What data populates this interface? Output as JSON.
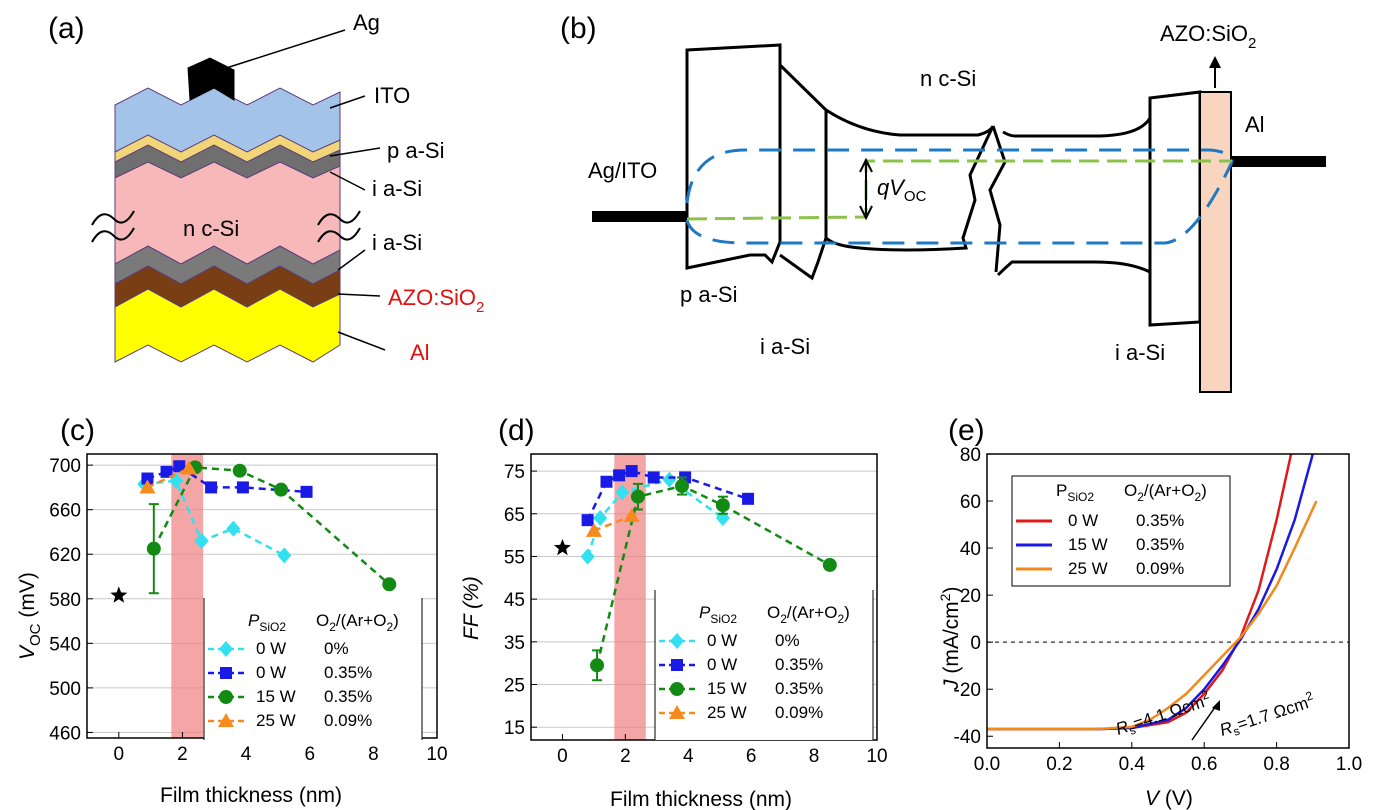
{
  "panels": {
    "a": {
      "label": "(a)",
      "layers": [
        {
          "name": "Ag",
          "color": "#000000"
        },
        {
          "name": "ITO",
          "color": "#a3c4e8"
        },
        {
          "name": "p a-Si",
          "color": "#f2d479"
        },
        {
          "name": "i a-Si",
          "color": "#6f6f6f"
        },
        {
          "name": "n c-Si",
          "color": "#f6b8b8"
        },
        {
          "name": "i a-Si",
          "color": "#7a7a7a"
        },
        {
          "name": "AZO:SiO",
          "sub": "2",
          "color": "#7a3e14"
        },
        {
          "name": "Al",
          "color": "#ffff00"
        }
      ]
    },
    "b": {
      "label": "(b)",
      "texts": {
        "ag_ito": "Ag/ITO",
        "nc_si": "n c-Si",
        "azo": "AZO:SiO",
        "azo_sub": "2",
        "al": "Al",
        "pasi": "p a-Si",
        "iasi_left": "i a-Si",
        "iasi_right": "i a-Si",
        "qv": "qV",
        "qv_sub": "OC"
      }
    },
    "c": {
      "label": "(c)",
      "ylabel_main": "V",
      "ylabel_sub": "OC",
      "ylabel_unit": " (mV)",
      "xlabel": "Film thickness (nm)",
      "legend_h1_main": "P",
      "legend_h1_sub": "SiO2",
      "legend_h2": "O",
      "legend_h2_sub": "2",
      "legend_h2_rest": "/(Ar+O",
      "legend_h2_sub2": "2",
      "legend_h2_end": ")"
    },
    "d": {
      "label": "(d)",
      "ylabel": "FF (%)",
      "xlabel": "Film thickness (nm)",
      "legend_h1_main": "P",
      "legend_h1_sub": "SiO2",
      "legend_h2": "O",
      "legend_h2_sub": "2",
      "legend_h2_rest": "/(Ar+O",
      "legend_h2_sub2": "2",
      "legend_h2_end": ")"
    },
    "e": {
      "label": "(e)",
      "ylabel_main": "J",
      "ylabel_rest": " (mA/cm",
      "ylabel_sup": "2",
      "ylabel_end": ")",
      "xlabel_main": "V",
      "xlabel_rest": " (V)",
      "legend_h1_main": "P",
      "legend_h1_sub": "SiO2",
      "legend_h2": "O",
      "legend_h2_sub": "2",
      "legend_h2_rest": "/(Ar+O",
      "legend_h2_sub2": "2",
      "legend_h2_end": ")",
      "ann1": "=4.1 Ωcm",
      "ann2": "=1.7 Ωcm",
      "ann_r": "R",
      "ann_s": "s",
      "ann_sup": "2"
    }
  },
  "chart_data": [
    {
      "panel": "c",
      "type": "scatter",
      "xlabel": "Film thickness (nm)",
      "ylabel": "VOC (mV)",
      "xlim": [
        -1,
        10
      ],
      "ylim": [
        455,
        710
      ],
      "xticks": [
        0,
        2,
        4,
        6,
        8,
        10
      ],
      "yticks": [
        460,
        500,
        540,
        580,
        620,
        660,
        700
      ],
      "highlight_band": [
        1.65,
        2.65
      ],
      "reference_star": {
        "x": 0,
        "y": 583
      },
      "series": [
        {
          "psio2": "0 W",
          "o2": "0%",
          "color": "#33e0ef",
          "marker": "diamond",
          "x": [
            0.8,
            1.8,
            2.6,
            3.6,
            5.2
          ],
          "y": [
            683,
            686,
            632,
            643,
            619
          ]
        },
        {
          "psio2": "0 W",
          "o2": "0.35%",
          "color": "#1a1ae6",
          "marker": "square",
          "x": [
            0.9,
            1.5,
            1.9,
            2.9,
            3.9,
            5.9
          ],
          "y": [
            688,
            694,
            699,
            680,
            680,
            676
          ]
        },
        {
          "psio2": "15 W",
          "o2": "0.35%",
          "color": "#138a13",
          "marker": "circle",
          "x": [
            1.1,
            2.4,
            3.8,
            5.1,
            8.5
          ],
          "y": [
            625,
            698,
            695,
            678,
            593
          ],
          "err_low": [
            40,
            0,
            0,
            0,
            0
          ],
          "err_high": [
            40,
            0,
            0,
            0,
            0
          ]
        },
        {
          "psio2": "25 W",
          "o2": "0.09%",
          "color": "#f78a1e",
          "marker": "triangle",
          "x": [
            0.9,
            2.2
          ],
          "y": [
            680,
            697
          ]
        }
      ]
    },
    {
      "panel": "d",
      "type": "scatter",
      "xlabel": "Film thickness (nm)",
      "ylabel": "FF (%)",
      "xlim": [
        -1,
        10
      ],
      "ylim": [
        12,
        79
      ],
      "xticks": [
        0,
        2,
        4,
        6,
        8,
        10
      ],
      "yticks": [
        15,
        25,
        35,
        45,
        55,
        65,
        75
      ],
      "highlight_band": [
        1.65,
        2.65
      ],
      "reference_star": {
        "x": 0,
        "y": 57
      },
      "series": [
        {
          "psio2": "0 W",
          "o2": "0%",
          "color": "#33e0ef",
          "marker": "diamond",
          "x": [
            0.8,
            1.2,
            1.9,
            3.4,
            5.1
          ],
          "y": [
            55,
            64,
            70,
            73,
            64
          ]
        },
        {
          "psio2": "0 W",
          "o2": "0.35%",
          "color": "#1a1ae6",
          "marker": "square",
          "x": [
            0.8,
            1.4,
            1.8,
            2.2,
            2.9,
            3.9,
            5.9
          ],
          "y": [
            63.5,
            72.5,
            74,
            75,
            73.5,
            73.5,
            68.5
          ]
        },
        {
          "psio2": "15 W",
          "o2": "0.35%",
          "color": "#138a13",
          "marker": "circle",
          "x": [
            1.1,
            2.4,
            3.8,
            5.1,
            8.5
          ],
          "y": [
            29.5,
            69,
            71.5,
            67,
            53
          ],
          "err_low": [
            3.5,
            3,
            2,
            2,
            0
          ],
          "err_high": [
            3.5,
            3,
            2,
            2,
            0
          ]
        },
        {
          "psio2": "25 W",
          "o2": "0.09%",
          "color": "#f78a1e",
          "marker": "triangle",
          "x": [
            1.0,
            2.2
          ],
          "y": [
            61,
            64.5
          ]
        }
      ]
    },
    {
      "panel": "e",
      "type": "line",
      "xlabel": "V (V)",
      "ylabel": "J (mA/cm2)",
      "xlim": [
        0,
        1.0
      ],
      "ylim": [
        -45,
        80
      ],
      "xticks": [
        0.0,
        0.2,
        0.4,
        0.6,
        0.8,
        1.0
      ],
      "yticks": [
        -40,
        -20,
        0,
        20,
        40,
        60,
        80
      ],
      "series": [
        {
          "psio2": "0 W",
          "o2": "0.35%",
          "color": "#e01a1a",
          "x": [
            0,
            0.3,
            0.4,
            0.5,
            0.55,
            0.6,
            0.65,
            0.7,
            0.75,
            0.8,
            0.84
          ],
          "y": [
            -37,
            -37,
            -36.5,
            -34,
            -30,
            -22,
            -12,
            2,
            22,
            52,
            80
          ]
        },
        {
          "psio2": "15 W",
          "o2": "0.35%",
          "color": "#1a1ae0",
          "x": [
            0,
            0.3,
            0.4,
            0.5,
            0.55,
            0.6,
            0.65,
            0.7,
            0.75,
            0.8,
            0.85,
            0.9
          ],
          "y": [
            -37,
            -37,
            -36.5,
            -33,
            -28,
            -20,
            -10,
            1,
            14,
            31,
            52,
            80
          ]
        },
        {
          "psio2": "25 W",
          "o2": "0.09%",
          "color": "#f08a1a",
          "x": [
            0,
            0.3,
            0.4,
            0.45,
            0.5,
            0.55,
            0.6,
            0.65,
            0.7,
            0.75,
            0.8,
            0.85,
            0.91
          ],
          "y": [
            -37,
            -37,
            -36,
            -33,
            -28,
            -22,
            -14,
            -6,
            2,
            12,
            24,
            40,
            60
          ]
        }
      ],
      "annotations": [
        "Rs=4.1 Ωcm2",
        "Rs=1.7 Ωcm2"
      ]
    }
  ]
}
